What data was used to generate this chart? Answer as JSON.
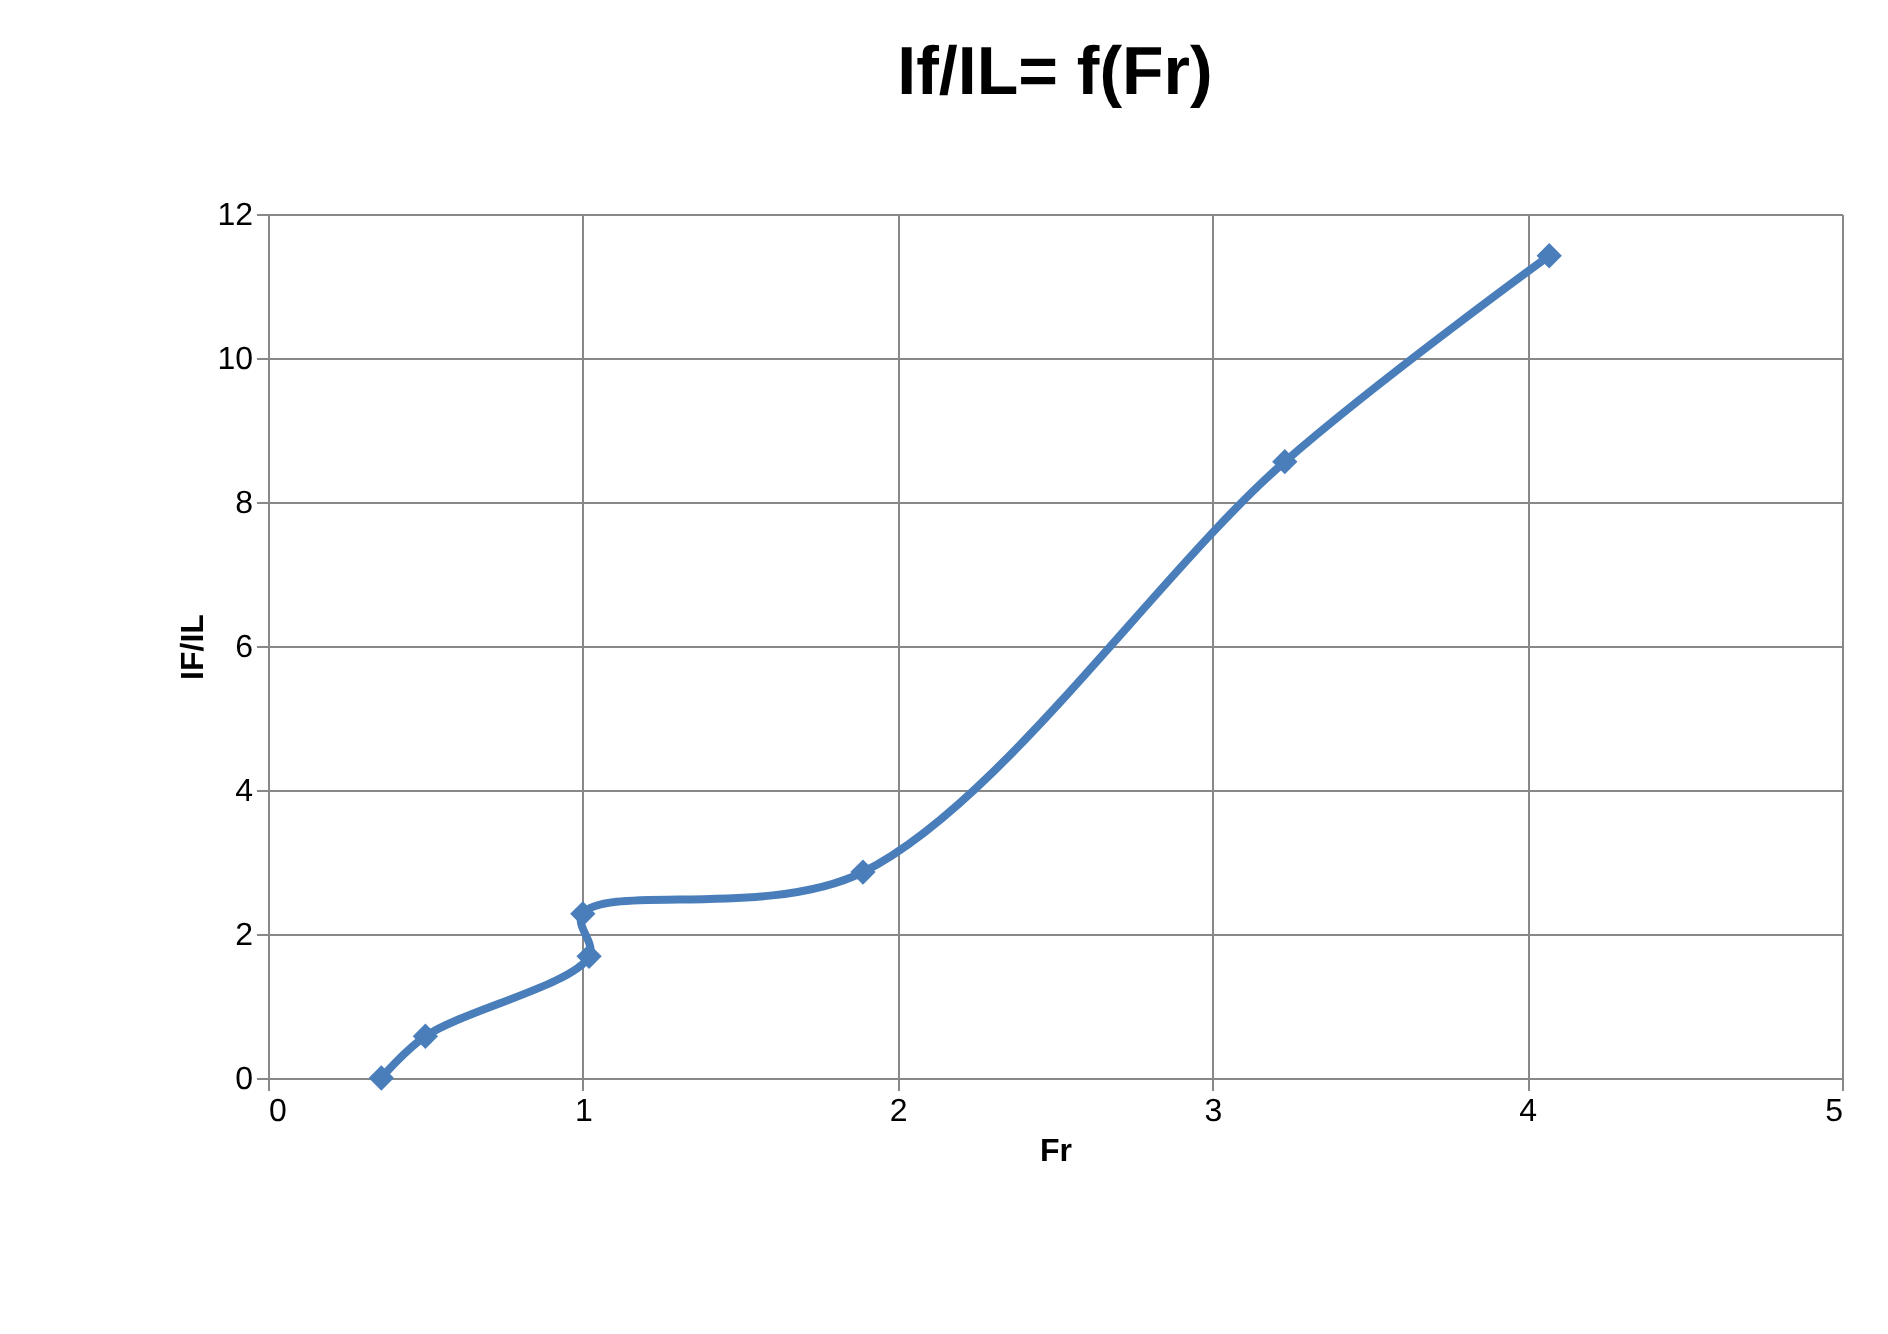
{
  "chart_data": {
    "type": "line",
    "title": "If/IL= f(Fr)",
    "xlabel": "Fr",
    "ylabel": "IF/IL",
    "x": [
      0.36,
      0.5,
      1.02,
      1.0,
      1.89,
      3.23,
      4.07
    ],
    "series": [
      {
        "color": "#4a7ebb",
        "values": [
          0,
          0.58,
          1.69,
          2.28,
          2.86,
          8.56,
          11.42
        ]
      }
    ],
    "xlim": [
      0,
      5
    ],
    "xticks": [
      0,
      1,
      2,
      3,
      4,
      5
    ],
    "ylim": [
      0,
      12
    ],
    "yticks": [
      0,
      2,
      4,
      6,
      8,
      10,
      12
    ],
    "grid": true,
    "marker": "diamond",
    "line_style": "solid"
  }
}
